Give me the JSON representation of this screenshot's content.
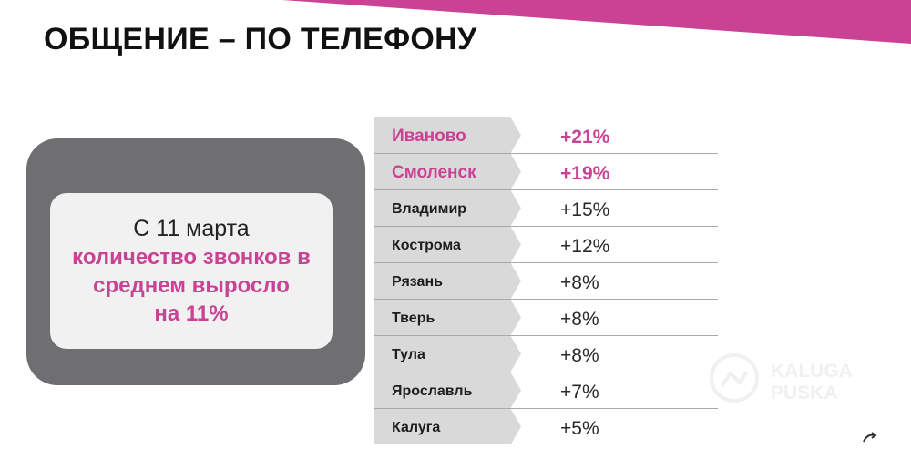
{
  "colors": {
    "accent": "#c94293",
    "card_outer": "#6f6e70",
    "card_inner": "#f1f1f1",
    "row_label_bg": "#d9d9d9"
  },
  "header": {
    "title": "ОБЩЕНИЕ – ПО ТЕЛЕФОНУ"
  },
  "summary": {
    "line1": "С 11 марта",
    "line2": "количество звонков в",
    "line3": "среднем выросло",
    "line4": "на 11%"
  },
  "table": {
    "rows": [
      {
        "city": "Иваново",
        "value": "+21%"
      },
      {
        "city": "Смоленск",
        "value": "+19%"
      },
      {
        "city": "Владимир",
        "value": "+15%"
      },
      {
        "city": "Кострома",
        "value": "+12%"
      },
      {
        "city": "Рязань",
        "value": "+8%"
      },
      {
        "city": "Тверь",
        "value": "+8%"
      },
      {
        "city": "Тула",
        "value": "+8%"
      },
      {
        "city": "Ярославль",
        "value": "+7%"
      },
      {
        "city": "Калуга",
        "value": "+5%"
      }
    ]
  },
  "watermark": {
    "text_line1": "KALUGA",
    "text_line2": "PUSKA"
  }
}
